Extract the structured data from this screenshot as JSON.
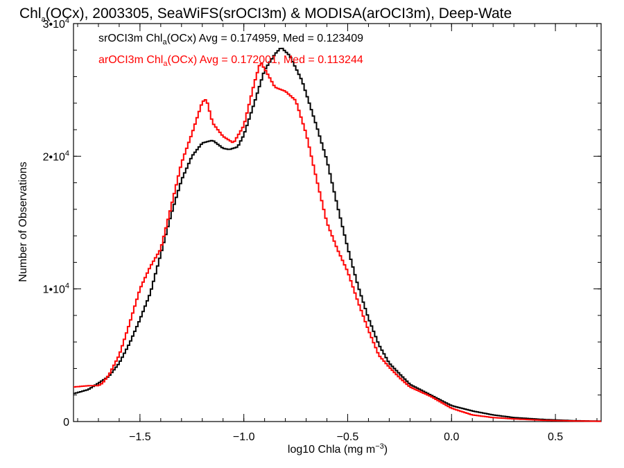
{
  "chart_data": {
    "type": "line",
    "step": true,
    "title": {
      "prefix": "Chl",
      "sub": "a",
      "rest": "(OCx), 2003305, SeaWiFS(srOCI3m) & MODISA(arOCI3m), Deep-Wate"
    },
    "xlabel": {
      "text": "log10 Chla (mg m",
      "sup": "−3",
      "close": ")"
    },
    "ylabel": "Number of Observations",
    "xlim": [
      -1.82,
      0.72
    ],
    "ylim": [
      0,
      30000
    ],
    "x_ticks": [
      {
        "value": -1.5,
        "label": "−1.5"
      },
      {
        "value": -1.0,
        "label": "−1.0"
      },
      {
        "value": -0.5,
        "label": "−0.5"
      },
      {
        "value": 0.0,
        "label": "0.0"
      },
      {
        "value": 0.5,
        "label": "0.5"
      }
    ],
    "y_ticks": [
      {
        "value": 0,
        "base": "0",
        "exp": ""
      },
      {
        "value": 10000,
        "base": "1•10",
        "exp": "4"
      },
      {
        "value": 20000,
        "base": "2•10",
        "exp": "4"
      },
      {
        "value": 30000,
        "base": "3•10",
        "exp": "4"
      }
    ],
    "grid": false,
    "legend_position": "top-left",
    "series": [
      {
        "name": "srOCI3m",
        "color": "#000000",
        "stats": {
          "prefix": "srOCI3m Chl",
          "sub": "a",
          "rest": "(OCx) Avg = 0.174959, Med = 0.123409"
        },
        "anchors": [
          [
            -1.82,
            2100
          ],
          [
            -1.75,
            2400
          ],
          [
            -1.7,
            2900
          ],
          [
            -1.65,
            3400
          ],
          [
            -1.6,
            4400
          ],
          [
            -1.55,
            5900
          ],
          [
            -1.5,
            7700
          ],
          [
            -1.45,
            9700
          ],
          [
            -1.4,
            12600
          ],
          [
            -1.35,
            15600
          ],
          [
            -1.3,
            18200
          ],
          [
            -1.25,
            20000
          ],
          [
            -1.2,
            21000
          ],
          [
            -1.15,
            21200
          ],
          [
            -1.1,
            20600
          ],
          [
            -1.07,
            20500
          ],
          [
            -1.03,
            20700
          ],
          [
            -1.0,
            21600
          ],
          [
            -0.95,
            24000
          ],
          [
            -0.9,
            26500
          ],
          [
            -0.85,
            27700
          ],
          [
            -0.82,
            28200
          ],
          [
            -0.78,
            27600
          ],
          [
            -0.72,
            25700
          ],
          [
            -0.65,
            22300
          ],
          [
            -0.6,
            19700
          ],
          [
            -0.55,
            16300
          ],
          [
            -0.5,
            13100
          ],
          [
            -0.45,
            10200
          ],
          [
            -0.4,
            7800
          ],
          [
            -0.35,
            5800
          ],
          [
            -0.3,
            4400
          ],
          [
            -0.25,
            3600
          ],
          [
            -0.2,
            2800
          ],
          [
            -0.1,
            2000
          ],
          [
            0.0,
            1200
          ],
          [
            0.1,
            800
          ],
          [
            0.2,
            500
          ],
          [
            0.3,
            300
          ],
          [
            0.45,
            150
          ],
          [
            0.6,
            60
          ],
          [
            0.72,
            30
          ]
        ]
      },
      {
        "name": "arOCI3m",
        "color": "#ff0000",
        "stats": {
          "prefix": "arOCI3m Chl",
          "sub": "a",
          "rest": "(OCx) Avg = 0.172001, Med = 0.113244"
        },
        "anchors": [
          [
            -1.82,
            2600
          ],
          [
            -1.75,
            2700
          ],
          [
            -1.7,
            2700
          ],
          [
            -1.68,
            2900
          ],
          [
            -1.65,
            3500
          ],
          [
            -1.6,
            5000
          ],
          [
            -1.55,
            7400
          ],
          [
            -1.5,
            10000
          ],
          [
            -1.45,
            11700
          ],
          [
            -1.4,
            13000
          ],
          [
            -1.35,
            16200
          ],
          [
            -1.3,
            19500
          ],
          [
            -1.25,
            21700
          ],
          [
            -1.2,
            24100
          ],
          [
            -1.18,
            24300
          ],
          [
            -1.15,
            22500
          ],
          [
            -1.1,
            21500
          ],
          [
            -1.05,
            21000
          ],
          [
            -1.0,
            22300
          ],
          [
            -0.95,
            25500
          ],
          [
            -0.92,
            27100
          ],
          [
            -0.9,
            26600
          ],
          [
            -0.85,
            25200
          ],
          [
            -0.8,
            24900
          ],
          [
            -0.75,
            24200
          ],
          [
            -0.7,
            21700
          ],
          [
            -0.65,
            18300
          ],
          [
            -0.6,
            15000
          ],
          [
            -0.55,
            13000
          ],
          [
            -0.5,
            11300
          ],
          [
            -0.45,
            9000
          ],
          [
            -0.4,
            6900
          ],
          [
            -0.35,
            5000
          ],
          [
            -0.3,
            4100
          ],
          [
            -0.25,
            3300
          ],
          [
            -0.2,
            2600
          ],
          [
            -0.1,
            1900
          ],
          [
            0.0,
            1000
          ],
          [
            0.1,
            500
          ],
          [
            0.2,
            300
          ],
          [
            0.3,
            200
          ],
          [
            0.45,
            90
          ],
          [
            0.6,
            40
          ],
          [
            0.72,
            20
          ]
        ]
      }
    ]
  }
}
